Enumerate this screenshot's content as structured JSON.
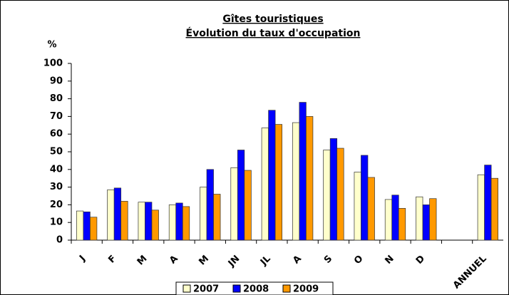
{
  "chart_data": {
    "type": "bar",
    "title": "Gîtes touristiques ",
    "subtitle": "Évolution du taux d'occupation",
    "y_label": "%",
    "categories": [
      "J",
      "F",
      "M",
      "A",
      "M",
      "JN",
      "JL",
      "A",
      "S",
      "O",
      "N",
      "D",
      null,
      "ANNUEL"
    ],
    "series": [
      {
        "name": "2007",
        "color": "#ffffcc",
        "values": [
          16.5,
          28.5,
          21.5,
          20,
          30,
          41,
          63.5,
          66.5,
          51,
          38.5,
          23,
          24.5,
          null,
          37
        ]
      },
      {
        "name": "2008",
        "color": "#0000ff",
        "values": [
          16,
          29.5,
          21.5,
          21,
          40,
          51,
          73.5,
          78,
          57.5,
          48,
          25.5,
          20,
          null,
          42.5
        ]
      },
      {
        "name": "2009",
        "color": "#ff9900",
        "values": [
          13,
          22,
          17,
          19,
          26,
          39.5,
          65.5,
          70,
          52,
          35.5,
          18,
          23.5,
          null,
          35
        ]
      }
    ],
    "ylim": [
      0,
      100
    ],
    "yticks": [
      0,
      10,
      20,
      30,
      40,
      50,
      60,
      70,
      80,
      90,
      100
    ],
    "grid": false,
    "legend": "bottom"
  }
}
